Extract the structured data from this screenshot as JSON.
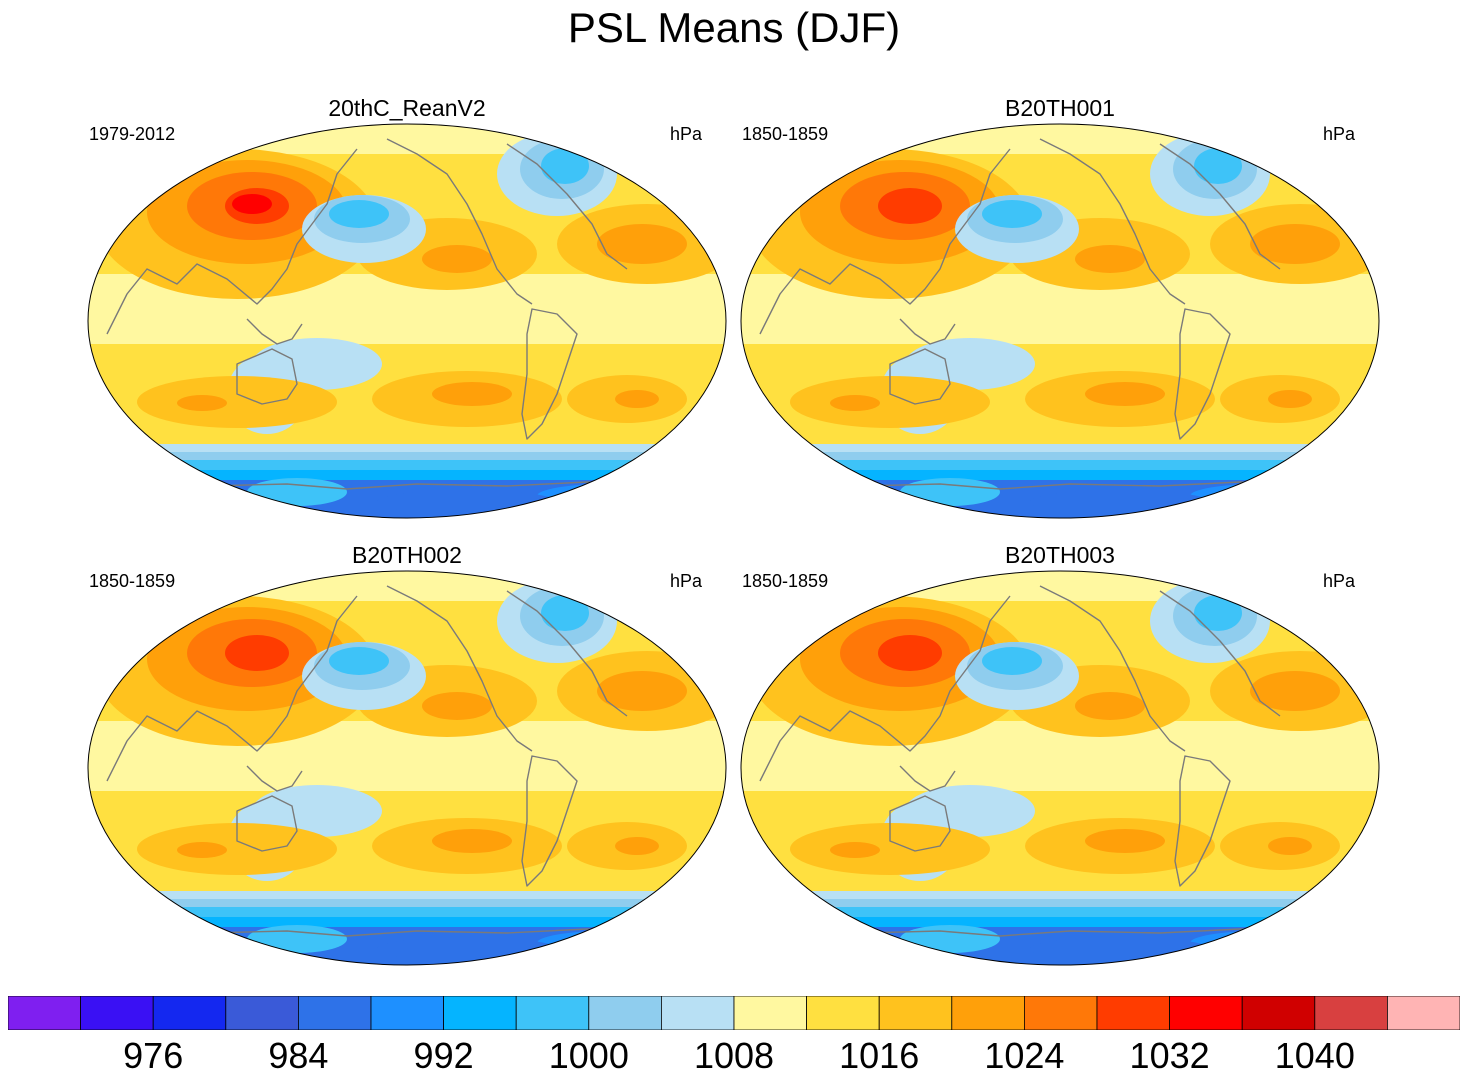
{
  "title": "PSL Means (DJF)",
  "panels": [
    {
      "name": "20thC_ReanV2",
      "period": "1979-2012",
      "units": "hPa"
    },
    {
      "name": "B20TH001",
      "period": "1850-1859",
      "units": "hPa"
    },
    {
      "name": "B20TH002",
      "period": "1850-1859",
      "units": "hPa"
    },
    {
      "name": "B20TH003",
      "period": "1850-1859",
      "units": "hPa"
    }
  ],
  "colorbar": {
    "colors": [
      "#7f1ff0",
      "#3a10f4",
      "#1428f0",
      "#3a5ad8",
      "#2e72e8",
      "#1e90ff",
      "#05b4ff",
      "#3ec3f8",
      "#8fcdee",
      "#b8e0f4",
      "#fff8a0",
      "#ffe040",
      "#ffc21e",
      "#ffa00a",
      "#ff7808",
      "#ff3c00",
      "#ff0000",
      "#d00000",
      "#d84040",
      "#ffb4b4"
    ],
    "tick_labels": [
      "976",
      "984",
      "992",
      "1000",
      "1008",
      "1016",
      "1024",
      "1032",
      "1040"
    ]
  }
}
